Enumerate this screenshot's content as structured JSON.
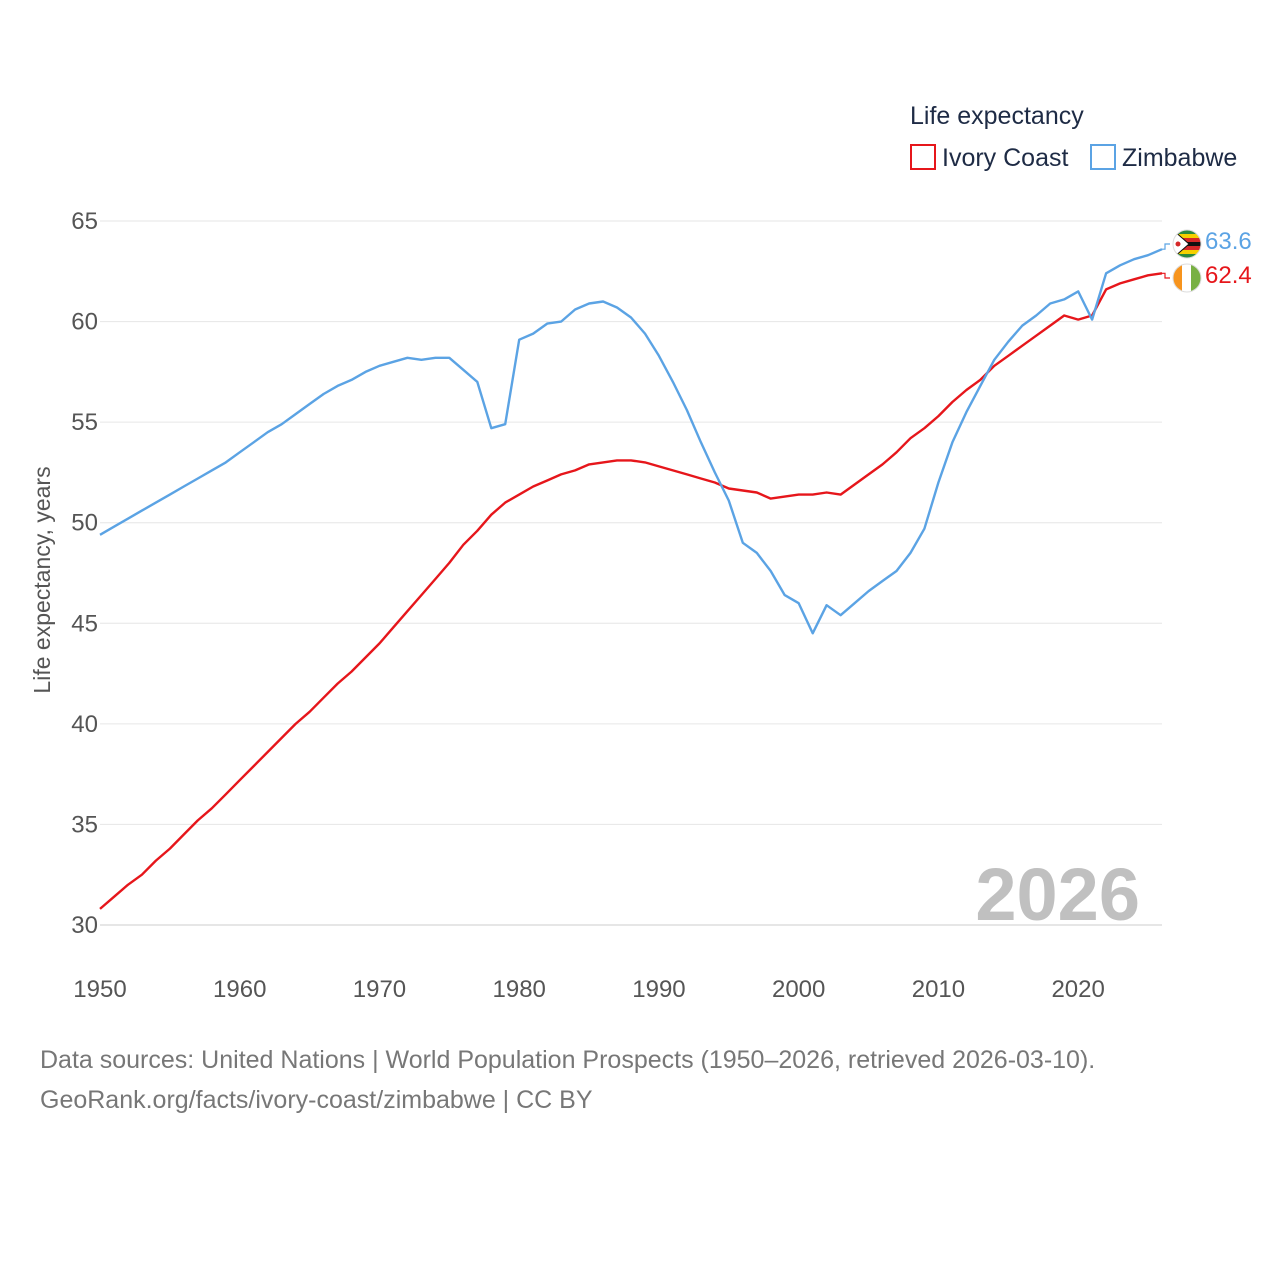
{
  "chart_data": {
    "type": "line",
    "title": "",
    "legend_title": "Life expectancy",
    "xlabel": "",
    "ylabel": "Life expectancy, years",
    "xlim": [
      1950,
      2026
    ],
    "ylim": [
      30,
      65
    ],
    "x_ticks": [
      1950,
      1960,
      1970,
      1980,
      1990,
      2000,
      2010,
      2020
    ],
    "y_ticks": [
      30,
      35,
      40,
      45,
      50,
      55,
      60,
      65
    ],
    "current_year_label": "2026",
    "x": [
      1950,
      1951,
      1952,
      1953,
      1954,
      1955,
      1956,
      1957,
      1958,
      1959,
      1960,
      1961,
      1962,
      1963,
      1964,
      1965,
      1966,
      1967,
      1968,
      1969,
      1970,
      1971,
      1972,
      1973,
      1974,
      1975,
      1976,
      1977,
      1978,
      1979,
      1980,
      1981,
      1982,
      1983,
      1984,
      1985,
      1986,
      1987,
      1988,
      1989,
      1990,
      1991,
      1992,
      1993,
      1994,
      1995,
      1996,
      1997,
      1998,
      1999,
      2000,
      2001,
      2002,
      2003,
      2004,
      2005,
      2006,
      2007,
      2008,
      2009,
      2010,
      2011,
      2012,
      2013,
      2014,
      2015,
      2016,
      2017,
      2018,
      2019,
      2020,
      2021,
      2022,
      2023,
      2024,
      2025,
      2026
    ],
    "series": [
      {
        "name": "Ivory Coast",
        "color": "#e6161b",
        "end_label": "62.4",
        "flag": "ivory-coast-flag",
        "values": [
          30.8,
          31.4,
          32.0,
          32.5,
          33.2,
          33.8,
          34.5,
          35.2,
          35.8,
          36.5,
          37.2,
          37.9,
          38.6,
          39.3,
          40.0,
          40.6,
          41.3,
          42.0,
          42.6,
          43.3,
          44.0,
          44.8,
          45.6,
          46.4,
          47.2,
          48.0,
          48.9,
          49.6,
          50.4,
          51.0,
          51.4,
          51.8,
          52.1,
          52.4,
          52.6,
          52.9,
          53.0,
          53.1,
          53.1,
          53.0,
          52.8,
          52.6,
          52.4,
          52.2,
          52.0,
          51.7,
          51.6,
          51.5,
          51.2,
          51.3,
          51.4,
          51.4,
          51.5,
          51.4,
          51.9,
          52.4,
          52.9,
          53.5,
          54.2,
          54.7,
          55.3,
          56.0,
          56.6,
          57.1,
          57.8,
          58.3,
          58.8,
          59.3,
          59.8,
          60.3,
          60.1,
          60.3,
          61.6,
          61.9,
          62.1,
          62.3,
          62.4
        ]
      },
      {
        "name": "Zimbabwe",
        "color": "#5ba3e4",
        "end_label": "63.6",
        "flag": "zimbabwe-flag",
        "values": [
          49.4,
          49.8,
          50.2,
          50.6,
          51.0,
          51.4,
          51.8,
          52.2,
          52.6,
          53.0,
          53.5,
          54.0,
          54.5,
          54.9,
          55.4,
          55.9,
          56.4,
          56.8,
          57.1,
          57.5,
          57.8,
          58.0,
          58.2,
          58.1,
          58.2,
          58.2,
          57.6,
          57.0,
          54.7,
          54.9,
          59.1,
          59.4,
          59.9,
          60.0,
          60.6,
          60.9,
          61.0,
          60.7,
          60.2,
          59.4,
          58.3,
          57.0,
          55.6,
          54.0,
          52.5,
          51.1,
          49.0,
          48.5,
          47.6,
          46.4,
          46.0,
          44.5,
          45.9,
          45.4,
          46.0,
          46.6,
          47.1,
          47.6,
          48.5,
          49.7,
          52.0,
          54.0,
          55.5,
          56.8,
          58.1,
          59.0,
          59.8,
          60.3,
          60.9,
          61.1,
          61.5,
          60.1,
          62.4,
          62.8,
          63.1,
          63.3,
          63.6
        ]
      }
    ]
  },
  "source": {
    "line1": "Data sources: United Nations | World Population Prospects (1950–2026, retrieved 2026-03-10).",
    "line2": "GeoRank.org/facts/ivory-coast/zimbabwe | CC BY"
  }
}
